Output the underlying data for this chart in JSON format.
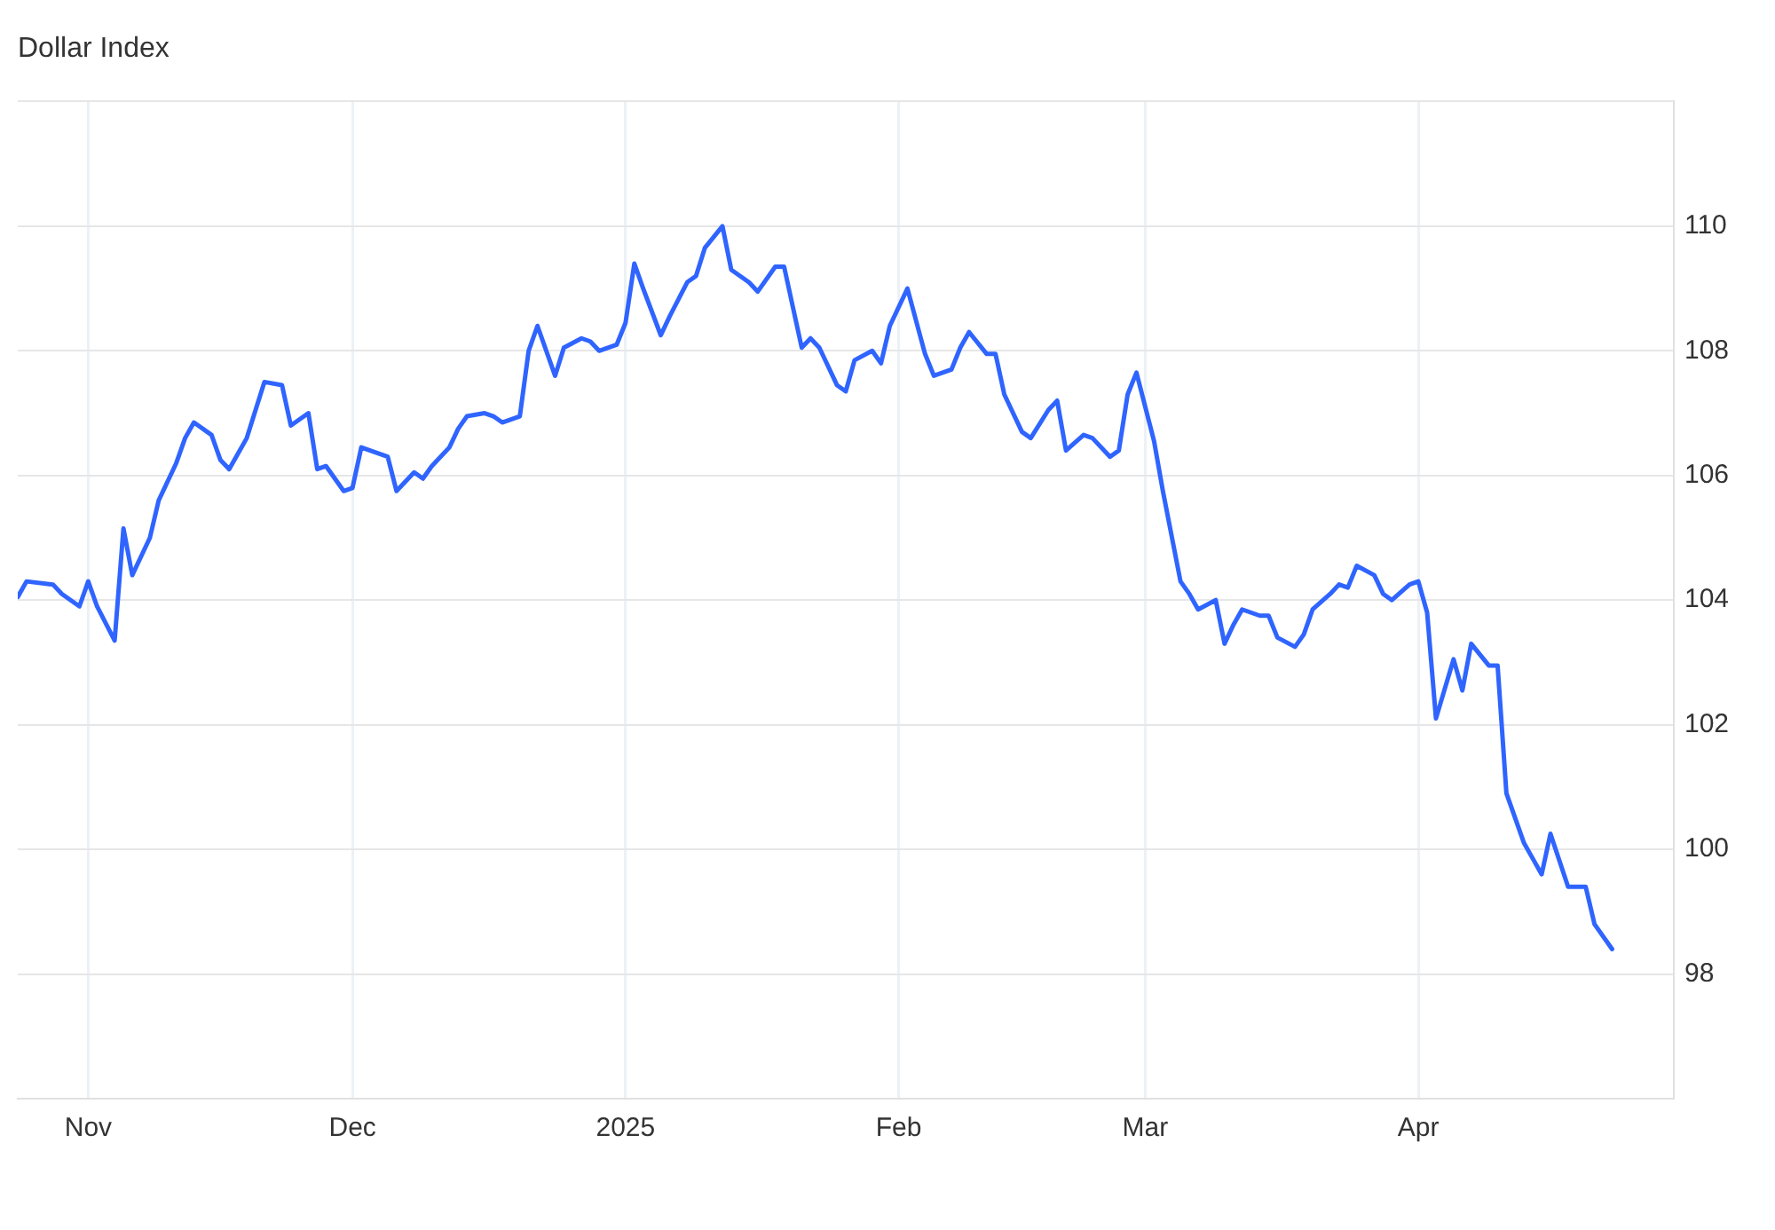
{
  "chart_data": {
    "type": "line",
    "title": "Dollar Index",
    "x": [
      "2024-10-24",
      "2024-10-25",
      "2024-10-28",
      "2024-10-29",
      "2024-10-31",
      "2024-11-01",
      "2024-11-02",
      "2024-11-04",
      "2024-11-05",
      "2024-11-06",
      "2024-11-08",
      "2024-11-09",
      "2024-11-11",
      "2024-11-12",
      "2024-11-13",
      "2024-11-15",
      "2024-11-16",
      "2024-11-17",
      "2024-11-19",
      "2024-11-20",
      "2024-11-21",
      "2024-11-23",
      "2024-11-24",
      "2024-11-26",
      "2024-11-27",
      "2024-11-28",
      "2024-11-30",
      "2024-12-01",
      "2024-12-02",
      "2024-12-04",
      "2024-12-05",
      "2024-12-06",
      "2024-12-08",
      "2024-12-09",
      "2024-12-10",
      "2024-12-12",
      "2024-12-13",
      "2024-12-14",
      "2024-12-16",
      "2024-12-17",
      "2024-12-18",
      "2024-12-20",
      "2024-12-21",
      "2024-12-22",
      "2024-12-24",
      "2024-12-25",
      "2024-12-27",
      "2024-12-28",
      "2024-12-29",
      "2024-12-31",
      "2025-01-01",
      "2025-01-02",
      "2025-01-03",
      "2025-01-05",
      "2025-01-06",
      "2025-01-08",
      "2025-01-09",
      "2025-01-10",
      "2025-01-12",
      "2025-01-13",
      "2025-01-15",
      "2025-01-16",
      "2025-01-18",
      "2025-01-19",
      "2025-01-21",
      "2025-01-22",
      "2025-01-23",
      "2025-01-25",
      "2025-01-26",
      "2025-01-27",
      "2025-01-29",
      "2025-01-30",
      "2025-01-31",
      "2025-02-02",
      "2025-02-04",
      "2025-02-05",
      "2025-02-07",
      "2025-02-08",
      "2025-02-09",
      "2025-02-11",
      "2025-02-12",
      "2025-02-13",
      "2025-02-15",
      "2025-02-16",
      "2025-02-18",
      "2025-02-19",
      "2025-02-20",
      "2025-02-22",
      "2025-02-23",
      "2025-02-25",
      "2025-02-26",
      "2025-02-27",
      "2025-02-28",
      "2025-03-02",
      "2025-03-03",
      "2025-03-05",
      "2025-03-06",
      "2025-03-07",
      "2025-03-09",
      "2025-03-10",
      "2025-03-11",
      "2025-03-12",
      "2025-03-14",
      "2025-03-15",
      "2025-03-16",
      "2025-03-18",
      "2025-03-19",
      "2025-03-20",
      "2025-03-22",
      "2025-03-23",
      "2025-03-24",
      "2025-03-25",
      "2025-03-27",
      "2025-03-28",
      "2025-03-29",
      "2025-03-31",
      "2025-04-01",
      "2025-04-02",
      "2025-04-03",
      "2025-04-05",
      "2025-04-06",
      "2025-04-07",
      "2025-04-09",
      "2025-04-10",
      "2025-04-11",
      "2025-04-13",
      "2025-04-14",
      "2025-04-15",
      "2025-04-16",
      "2025-04-18",
      "2025-04-19",
      "2025-04-20",
      "2025-04-21",
      "2025-04-23"
    ],
    "series": [
      {
        "color": "#2f64ff",
        "values": [
          104.05,
          104.3,
          104.25,
          104.1,
          103.9,
          104.3,
          103.9,
          103.35,
          105.15,
          104.4,
          105.0,
          105.6,
          106.2,
          106.6,
          106.85,
          106.65,
          106.25,
          106.1,
          106.6,
          107.05,
          107.5,
          107.45,
          106.8,
          107.0,
          106.1,
          106.15,
          105.75,
          105.8,
          106.45,
          106.35,
          106.3,
          105.75,
          106.05,
          105.95,
          106.15,
          106.45,
          106.75,
          106.95,
          107.0,
          106.95,
          106.85,
          106.95,
          108.0,
          108.4,
          107.6,
          108.05,
          108.2,
          108.15,
          108.0,
          108.1,
          108.45,
          109.4,
          109.0,
          108.25,
          108.55,
          109.1,
          109.2,
          109.65,
          110.0,
          109.3,
          109.1,
          108.95,
          109.35,
          109.35,
          108.05,
          108.2,
          108.05,
          107.45,
          107.35,
          107.85,
          108.0,
          107.8,
          108.4,
          109.0,
          107.95,
          107.6,
          107.7,
          108.05,
          108.3,
          107.95,
          107.95,
          107.3,
          106.7,
          106.6,
          107.05,
          107.2,
          106.4,
          106.65,
          106.6,
          106.3,
          106.4,
          107.3,
          107.65,
          106.55,
          105.75,
          104.3,
          104.1,
          103.85,
          104.0,
          103.3,
          103.6,
          103.85,
          103.75,
          103.75,
          103.4,
          103.25,
          103.45,
          103.85,
          104.1,
          104.25,
          104.2,
          104.55,
          104.4,
          104.1,
          104.0,
          104.25,
          104.3,
          103.8,
          102.1,
          103.05,
          102.55,
          103.3,
          102.95,
          102.95,
          100.9,
          100.1,
          99.85,
          99.6,
          100.25,
          99.4,
          99.4,
          99.4,
          98.8,
          98.4
        ]
      }
    ],
    "xlim": [
      "2024-10-24",
      "2025-04-30"
    ],
    "xticks": [
      {
        "value": "2024-11-01",
        "label": "Nov"
      },
      {
        "value": "2024-12-01",
        "label": "Dec"
      },
      {
        "value": "2025-01-01",
        "label": "2025"
      },
      {
        "value": "2025-02-01",
        "label": "Feb"
      },
      {
        "value": "2025-03-01",
        "label": "Mar"
      },
      {
        "value": "2025-04-01",
        "label": "Apr"
      }
    ],
    "ylim": [
      96,
      112
    ],
    "yticks": [
      98,
      100,
      102,
      104,
      106,
      108,
      110,
      {
        "value": 112,
        "label": null
      }
    ],
    "grid": true,
    "legend": false,
    "marker": "none",
    "line_style": "solid"
  }
}
